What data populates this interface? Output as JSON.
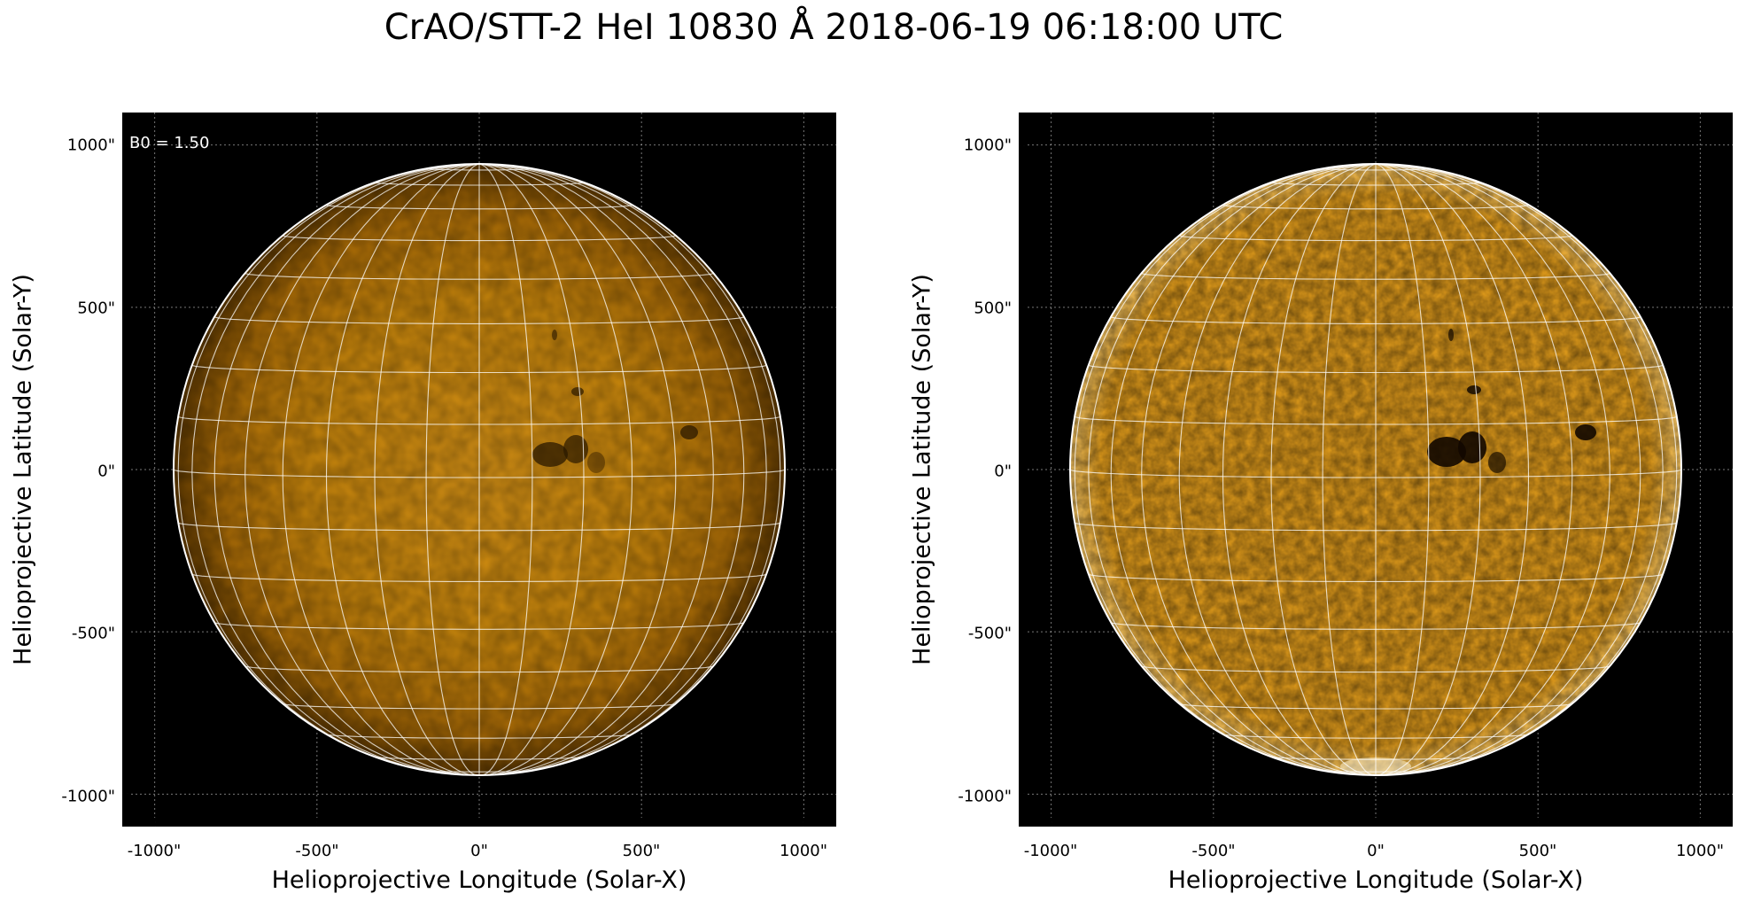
{
  "figure": {
    "title": "CrAO/STT-2 HeI 10830 Å 2018-06-19 06:18:00 UTC"
  },
  "axes": {
    "xlabel": "Helioprojective Longitude (Solar-X)",
    "ylabel": "Helioprojective Latitude (Solar-Y)",
    "xticks": [
      "-1000\"",
      "-500\"",
      "0\"",
      "500\"",
      "1000\""
    ],
    "yticks": [
      "1000\"",
      "500\"",
      "0\"",
      "-500\"",
      "-1000\""
    ],
    "range_arcsec": [
      -1100,
      1100
    ]
  },
  "panels": [
    {
      "annotation": "B0 = 1.50",
      "style": "original",
      "disk_color": "#c8860c"
    },
    {
      "annotation": "",
      "style": "contrast-enhanced",
      "disk_color": "#d9961a"
    }
  ],
  "colors": {
    "background": "#000000",
    "grid": "#ffffff",
    "limb": "#ffffff",
    "dark_feature": "#1a0e00"
  }
}
